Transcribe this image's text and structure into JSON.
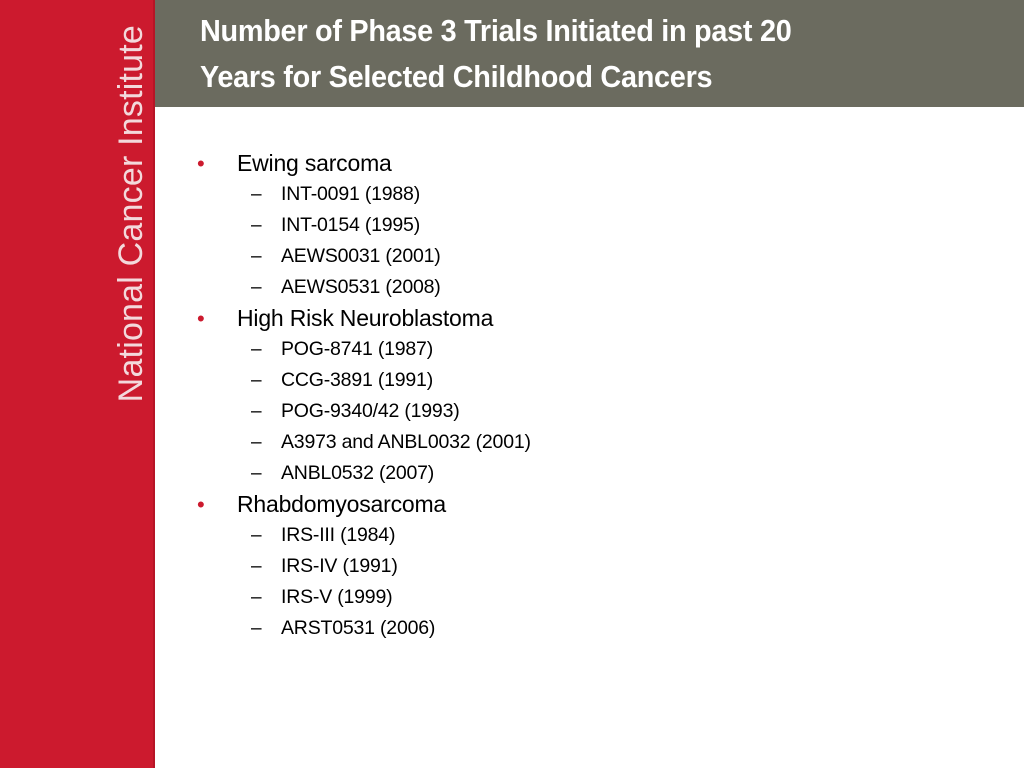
{
  "sidebar": {
    "brand": "National Cancer Institute"
  },
  "header": {
    "title_line1": "Number of Phase 3 Trials Initiated in past 20",
    "title_line2": "Years for Selected Childhood Cancers"
  },
  "bullet_symbol": "•",
  "dash_symbol": "–",
  "cancers": [
    {
      "name": "Ewing sarcoma",
      "trials": [
        "INT-0091 (1988)",
        "INT-0154 (1995)",
        "AEWS0031 (2001)",
        "AEWS0531 (2008)"
      ]
    },
    {
      "name": "High Risk Neuroblastoma",
      "trials": [
        "POG-8741 (1987)",
        "CCG-3891 (1991)",
        "POG-9340/42 (1993)",
        "A3973 and ANBL0032 (2001)",
        "ANBL0532 (2007)"
      ]
    },
    {
      "name": "Rhabdomyosarcoma",
      "trials": [
        "IRS-III (1984)",
        "IRS-IV (1991)",
        "IRS-V (1999)",
        "ARST0531 (2006)"
      ]
    }
  ],
  "colors": {
    "brand_red": "#cc1a2e",
    "header_gray": "#6b6b5f",
    "title_text": "#ffffff",
    "body_text": "#000000"
  }
}
